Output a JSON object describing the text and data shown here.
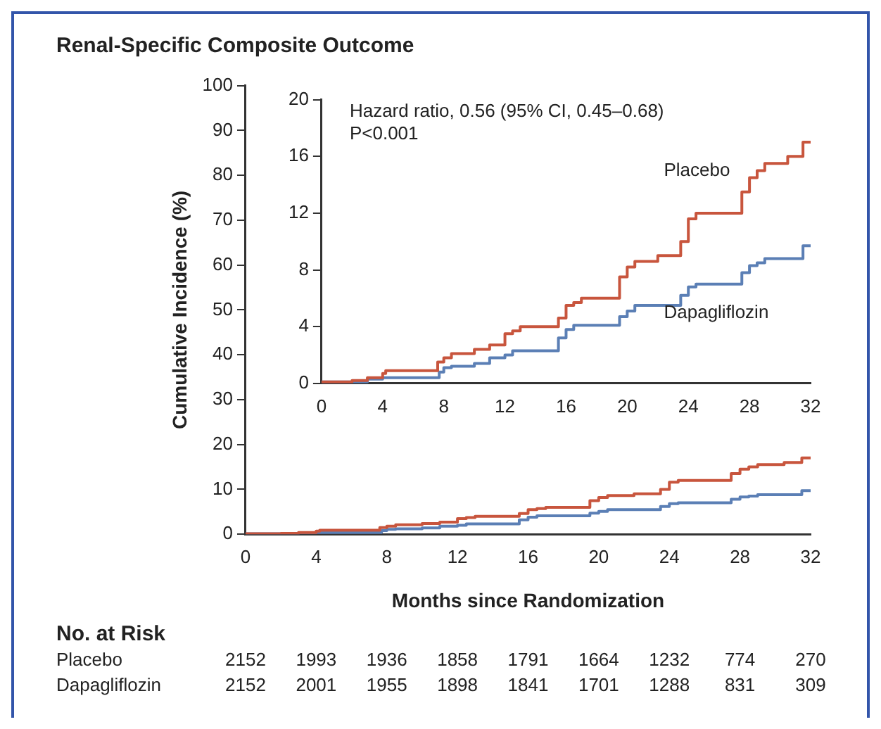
{
  "chart_data": [
    {
      "type": "step",
      "title": "Renal-Specific Composite Outcome",
      "xlabel": "Months since Randomization",
      "ylabel": "Cumulative Incidence (%)",
      "x": [
        0,
        2,
        3,
        4,
        4.2,
        7.6,
        8,
        8.5,
        10,
        11,
        12,
        12.5,
        13,
        15.5,
        16,
        16.5,
        17,
        19.5,
        20,
        20.5,
        22,
        23.5,
        24,
        24.5,
        27.5,
        28,
        28.5,
        29,
        30.5,
        31.5,
        32
      ],
      "series": [
        {
          "color": "#c8553d",
          "values": [
            0,
            0.1,
            0.2,
            0.4,
            0.7,
            0.9,
            1.5,
            1.8,
            2.1,
            2.4,
            2.7,
            3.5,
            3.7,
            4,
            4.6,
            5.5,
            5.7,
            6,
            7.5,
            8.2,
            8.6,
            9,
            10,
            11.6,
            12,
            13.5,
            14.5,
            15,
            15.5,
            16,
            17
          ]
        },
        {
          "color": "#5b7fb5",
          "x": [
            0,
            3,
            4,
            7.7,
            8,
            8.5,
            10,
            11,
            12,
            12.5,
            15.5,
            16,
            16.5,
            19.5,
            20,
            20.5,
            23.5,
            24,
            24.5,
            27.5,
            28,
            28.5,
            29,
            31.5,
            32
          ],
          "values": [
            0,
            0.1,
            0.3,
            0.4,
            0.8,
            1.1,
            1.2,
            1.4,
            1.8,
            2,
            2.3,
            3.2,
            3.8,
            4.1,
            4.7,
            5.1,
            5.5,
            6.2,
            6.8,
            7,
            7.8,
            8.3,
            8.5,
            8.8,
            9.7
          ]
        }
      ],
      "xlim": [
        0,
        32
      ],
      "xticks": [
        0,
        4,
        8,
        12,
        16,
        20,
        24,
        28,
        32
      ],
      "ylim": [
        0,
        100
      ],
      "yticks": [
        0,
        10,
        20,
        30,
        40,
        50,
        60,
        70,
        80,
        90,
        100
      ],
      "grid": false,
      "legend": false,
      "marker": "none",
      "annotations": [
        "No. at Risk",
        "Placebo",
        "2152",
        "1993",
        "1936",
        "1858",
        "1791",
        "1664",
        "1232",
        "774",
        "270",
        "Dapagliflozin",
        "2152",
        "2001",
        "1955",
        "1898",
        "1841",
        "1701",
        "1288",
        "831",
        "309"
      ]
    },
    {
      "type": "step",
      "annotations": [
        "Hazard ratio, 0.56 (95% CI, 0.45–0.68)",
        "P<0.001"
      ],
      "x": [
        0,
        2,
        3,
        4,
        4.2,
        7.6,
        8,
        8.5,
        10,
        11,
        12,
        12.5,
        13,
        15.5,
        16,
        16.5,
        17,
        19.5,
        20,
        20.5,
        22,
        23.5,
        24,
        24.5,
        27.5,
        28,
        28.5,
        29,
        30.5,
        31.5,
        32
      ],
      "series": [
        {
          "name": "Placebo",
          "color": "#c8553d",
          "values": [
            0,
            0.1,
            0.2,
            0.4,
            0.7,
            0.9,
            1.5,
            1.8,
            2.1,
            2.4,
            2.7,
            3.5,
            3.7,
            4,
            4.6,
            5.5,
            5.7,
            6,
            7.5,
            8.2,
            8.6,
            9,
            10,
            11.6,
            12,
            13.5,
            14.5,
            15,
            15.5,
            16,
            17
          ]
        },
        {
          "name": "Dapagliflozin",
          "color": "#5b7fb5",
          "x": [
            0,
            3,
            4,
            7.7,
            8,
            8.5,
            10,
            11,
            12,
            12.5,
            15.5,
            16,
            16.5,
            19.5,
            20,
            20.5,
            23.5,
            24,
            24.5,
            27.5,
            28,
            28.5,
            29,
            31.5,
            32
          ],
          "values": [
            0,
            0.1,
            0.3,
            0.4,
            0.8,
            1.1,
            1.2,
            1.4,
            1.8,
            2,
            2.3,
            3.2,
            3.8,
            4.1,
            4.7,
            5.1,
            5.5,
            6.2,
            6.8,
            7,
            7.8,
            8.3,
            8.5,
            8.8,
            9.7
          ]
        }
      ],
      "xlim": [
        0,
        32
      ],
      "xticks": [
        0,
        4,
        8,
        12,
        16,
        20,
        24,
        28,
        32
      ],
      "ylim": [
        0,
        20
      ],
      "yticks": [
        0,
        4,
        8,
        12,
        16,
        20
      ],
      "grid": false,
      "legend": false,
      "marker": "none"
    }
  ]
}
